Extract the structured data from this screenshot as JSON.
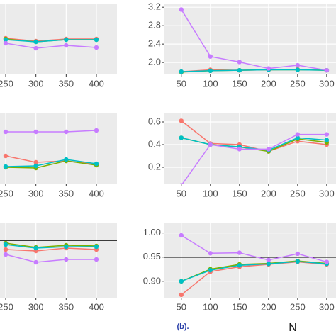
{
  "chart_data": [
    {
      "type": "line",
      "x": [
        250,
        300,
        350,
        400
      ],
      "xlim": [
        240.6,
        434
      ],
      "xticks": [
        250,
        300,
        350,
        400
      ],
      "ylim": [
        0,
        100
      ],
      "grid": true,
      "series": [
        {
          "color": "#F8766D",
          "values": [
            51,
            47,
            50,
            50
          ]
        },
        {
          "color": "#7CAE00",
          "values": [
            50,
            46,
            49,
            49
          ]
        },
        {
          "color": "#00BFC4",
          "values": [
            49,
            46,
            49,
            49
          ]
        },
        {
          "color": "#C77CFF",
          "values": [
            44,
            37,
            41,
            38
          ]
        }
      ]
    },
    {
      "type": "line",
      "x": [
        50,
        100,
        150,
        200,
        250,
        300
      ],
      "xlim": [
        21,
        316
      ],
      "xticks": [
        50,
        100,
        150,
        200,
        250,
        300
      ],
      "ylim": [
        1.74,
        3.28
      ],
      "yticks": [
        {
          "value": 2.0,
          "label": "2.0"
        },
        2.4,
        2.8,
        3.2
      ],
      "grid": true,
      "series": [
        {
          "color": "#F8766D",
          "values": [
            1.8,
            1.84,
            1.83,
            1.84,
            1.85,
            1.83
          ]
        },
        {
          "color": "#7CAE00",
          "values": [
            1.79,
            1.82,
            1.83,
            1.84,
            1.84,
            1.83
          ]
        },
        {
          "color": "#00BFC4",
          "values": [
            1.8,
            1.82,
            1.83,
            1.84,
            1.84,
            1.83
          ]
        },
        {
          "color": "#C77CFF",
          "values": [
            3.15,
            2.13,
            2.01,
            1.87,
            1.94,
            1.83
          ]
        }
      ]
    },
    {
      "type": "line",
      "x": [
        250,
        300,
        350,
        400
      ],
      "xlim": [
        240.6,
        434
      ],
      "xticks": [
        250,
        300,
        350,
        400
      ],
      "ylim": [
        0,
        100
      ],
      "grid": true,
      "series": [
        {
          "color": "#F8766D",
          "values": [
            40,
            31,
            33,
            28
          ]
        },
        {
          "color": "#7CAE00",
          "values": [
            24,
            23,
            33,
            27
          ]
        },
        {
          "color": "#00BFC4",
          "values": [
            25,
            26,
            35,
            29
          ]
        },
        {
          "color": "#C77CFF",
          "values": [
            74,
            74,
            74,
            76
          ]
        }
      ]
    },
    {
      "type": "line",
      "x": [
        50,
        100,
        150,
        200,
        250,
        300
      ],
      "xlim": [
        21,
        316
      ],
      "xticks": [
        50,
        100,
        150,
        200,
        250,
        300
      ],
      "ylim": [
        0.05,
        0.675
      ],
      "yticks": [
        0.2,
        0.4,
        0.6
      ],
      "grid": true,
      "series": [
        {
          "color": "#F8766D",
          "values": [
            0.61,
            0.41,
            0.4,
            0.34,
            0.43,
            0.4
          ]
        },
        {
          "color": "#7CAE00",
          "values": [
            0.46,
            0.4,
            0.38,
            0.34,
            0.45,
            0.42
          ]
        },
        {
          "color": "#00BFC4",
          "values": [
            0.46,
            0.4,
            0.38,
            0.35,
            0.46,
            0.44
          ]
        },
        {
          "color": "#C77CFF",
          "values": [
            0.04,
            0.4,
            0.36,
            0.36,
            0.49,
            0.49
          ]
        }
      ]
    },
    {
      "type": "line",
      "x": [
        250,
        300,
        350,
        400
      ],
      "xlim": [
        240.6,
        434
      ],
      "xticks": [
        250,
        300,
        350,
        400
      ],
      "ylim": [
        0,
        105
      ],
      "grid": true,
      "hline": 81,
      "series": [
        {
          "color": "#F8766D",
          "values": [
            68,
            66,
            70,
            68
          ]
        },
        {
          "color": "#7CAE00",
          "values": [
            77,
            71,
            74,
            73
          ]
        },
        {
          "color": "#00BFC4",
          "values": [
            75,
            70,
            72,
            72
          ]
        },
        {
          "color": "#C77CFF",
          "values": [
            61,
            50,
            54,
            54
          ]
        }
      ]
    },
    {
      "type": "line",
      "x": [
        50,
        100,
        150,
        200,
        250,
        300
      ],
      "xlim": [
        21,
        316
      ],
      "xticks": [
        50,
        100,
        150,
        200,
        250,
        300
      ],
      "ylim": [
        0.866,
        1.02
      ],
      "yticks": [
        {
          "value": 0.9,
          "label": "0.90"
        },
        0.95,
        {
          "value": 1.0,
          "label": "1.00"
        }
      ],
      "grid": true,
      "hline": 0.95,
      "xlabel": "N",
      "caption": "(b).",
      "series": [
        {
          "color": "#F8766D",
          "values": [
            0.872,
            0.92,
            0.93,
            0.935,
            0.94,
            0.935
          ]
        },
        {
          "color": "#7CAE00",
          "values": [
            0.9,
            0.925,
            0.935,
            0.937,
            0.942,
            0.937
          ]
        },
        {
          "color": "#00BFC4",
          "values": [
            0.9,
            0.923,
            0.933,
            0.936,
            0.941,
            0.936
          ]
        },
        {
          "color": "#C77CFF",
          "values": [
            0.995,
            0.958,
            0.959,
            0.944,
            0.957,
            0.94
          ]
        }
      ]
    }
  ]
}
